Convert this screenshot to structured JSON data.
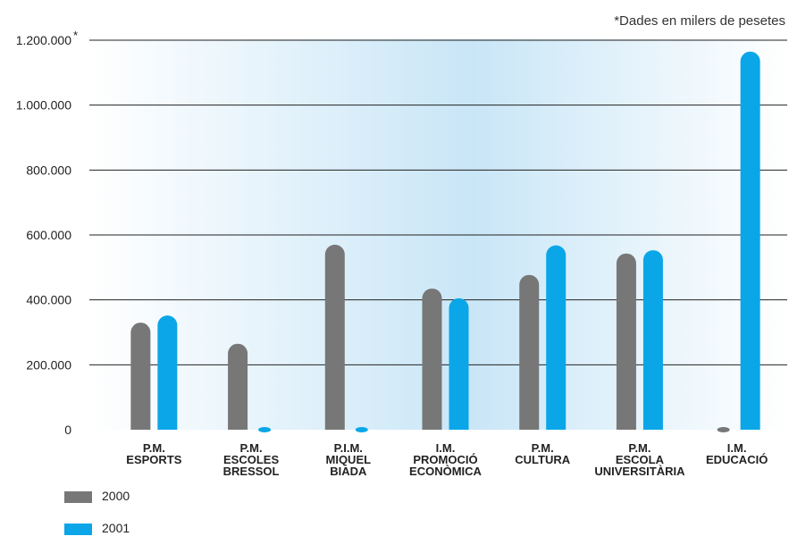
{
  "chart_data": {
    "type": "bar",
    "note": "*Dades en milers de pesetes",
    "ylabel_marker": "*",
    "categories": [
      [
        "P.M.",
        "ESPORTS"
      ],
      [
        "P.M.",
        "ESCOLES",
        "BRESSOL"
      ],
      [
        "P.I.M.",
        "MIQUEL",
        "BIADA"
      ],
      [
        "I.M.",
        "PROMOCIÓ",
        "ECONÒMICA"
      ],
      [
        "P.M.",
        "CULTURA"
      ],
      [
        "P.M.",
        "ESCOLA",
        "UNIVERSITÀRIA"
      ],
      [
        "I.M.",
        "EDUCACIÓ"
      ]
    ],
    "series": [
      {
        "name": "2000",
        "color": "#777777",
        "values": [
          330000,
          265000,
          570000,
          435000,
          477000,
          543000,
          0
        ]
      },
      {
        "name": "2001",
        "color": "#0aa6e8",
        "values": [
          352000,
          0,
          0,
          405000,
          568000,
          553000,
          1165000
        ]
      }
    ],
    "yticks": [
      "0",
      "200.000",
      "400.000",
      "600.000",
      "800.000",
      "1.000.000",
      "1.200.000"
    ],
    "ytick_values": [
      0,
      200000,
      400000,
      600000,
      800000,
      1000000,
      1200000
    ],
    "ylim": [
      0,
      1200000
    ],
    "grid": true,
    "legend_position": "bottom-left"
  }
}
